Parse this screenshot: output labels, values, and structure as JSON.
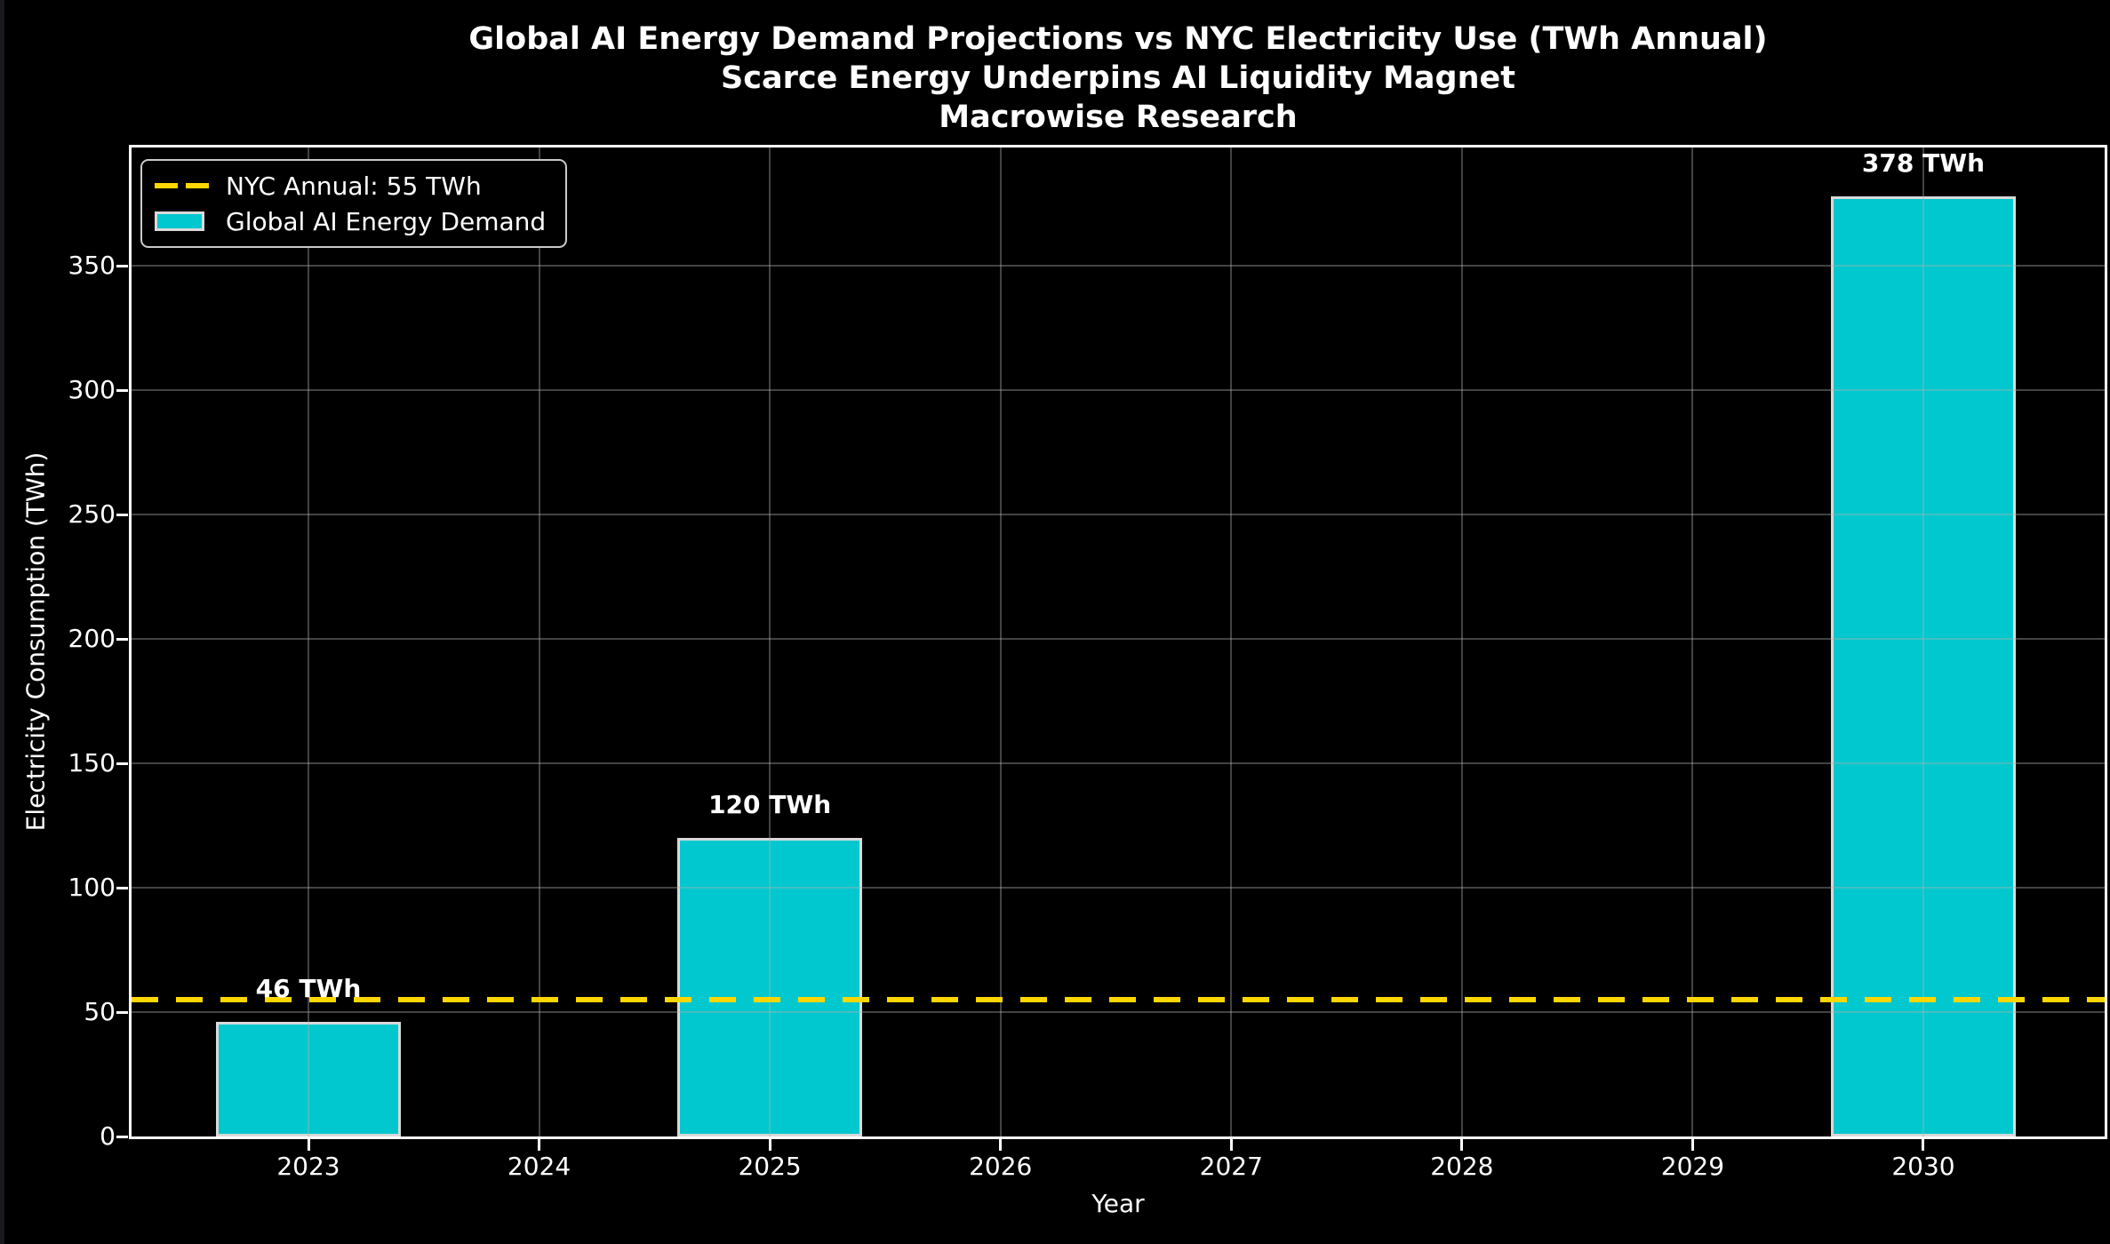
{
  "chart_data": {
    "type": "bar",
    "title_lines": [
      "Global AI Energy Demand Projections vs NYC Electricity Use (TWh Annual)",
      "Scarce Energy Underpins AI Liquidity Magnet",
      "Macrowise Research"
    ],
    "xlabel": "Year",
    "ylabel": "Electricity Consumption (TWh)",
    "categories": [
      "2023",
      "2024",
      "2025",
      "2026",
      "2027",
      "2028",
      "2029",
      "2030"
    ],
    "series": [
      {
        "name": "Global AI Energy Demand",
        "bars": [
          {
            "x": "2023",
            "value": 46,
            "label": "46 TWh"
          },
          {
            "x": "2025",
            "value": 120,
            "label": "120 TWh"
          },
          {
            "x": "2030",
            "value": 378,
            "label": "378 TWh"
          }
        ]
      }
    ],
    "reference_line": {
      "value": 55,
      "label": "NYC Annual: 55 TWh",
      "style": "dashed"
    },
    "y_ticks": [
      0,
      50,
      100,
      150,
      200,
      250,
      300,
      350
    ],
    "ylim": [
      0,
      400
    ],
    "grid": true,
    "legend": {
      "position": "upper-left",
      "entries": [
        {
          "label": "NYC Annual: 55 TWh",
          "swatch": "dashed-line",
          "color": "#FFD700"
        },
        {
          "label": "Global AI Energy Demand",
          "swatch": "filled-patch",
          "color": "#00C8CE"
        }
      ]
    },
    "colors": {
      "background": "#000000",
      "bar_fill": "#00C8CE",
      "bar_edge": "#D9D9D9",
      "reference_line": "#FFD700",
      "grid": "#AFAFAF",
      "spine": "#FFFFFF",
      "text": "#FFFFFF"
    }
  }
}
